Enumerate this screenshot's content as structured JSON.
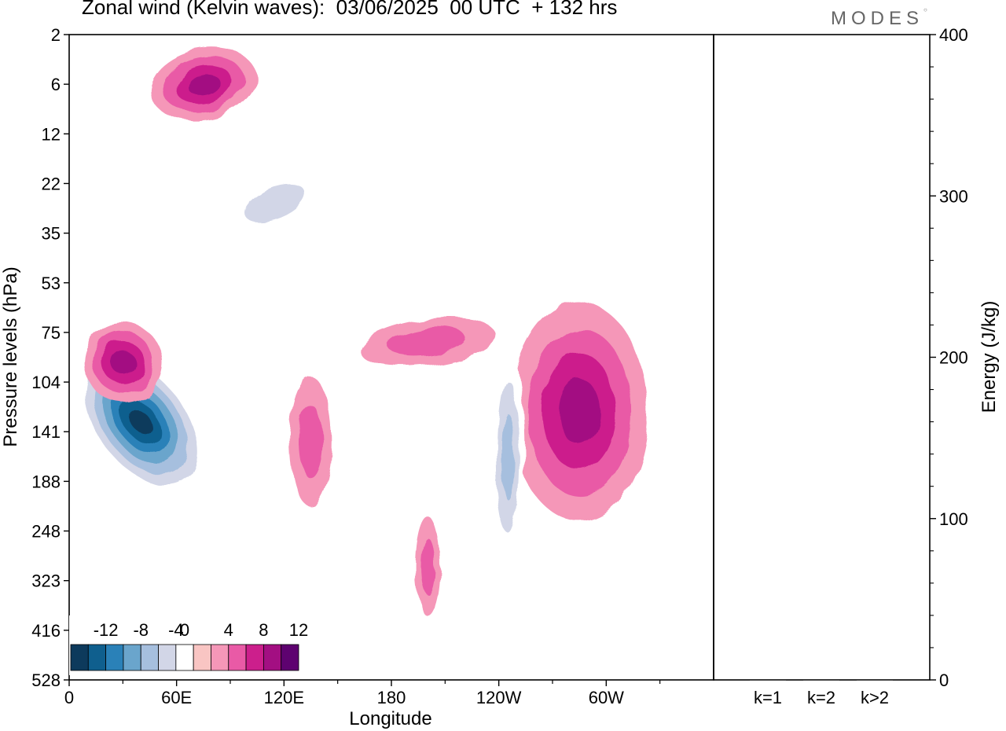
{
  "header": {
    "title": "Zonal wind (Kelvin waves):  03/06/2025  00 UTC  + 132 hrs",
    "logo_text": "MODES"
  },
  "chart_data": [
    {
      "type": "heatmap",
      "title": "Zonal wind (Kelvin waves):  03/06/2025  00 UTC  + 132 hrs",
      "xlabel": "Longitude",
      "ylabel": "Pressure levels (hPa)",
      "x_tick_labels": [
        "0",
        "60E",
        "120E",
        "180",
        "120W",
        "60W"
      ],
      "x_ticks_deg": [
        0,
        60,
        120,
        180,
        240,
        300
      ],
      "xlim_deg": [
        0,
        360
      ],
      "y_tick_labels": [
        "2",
        "6",
        "12",
        "22",
        "35",
        "53",
        "75",
        "104",
        "141",
        "188",
        "248",
        "323",
        "416",
        "528"
      ],
      "y_scale": "pressure levels, evenly spaced",
      "colorbar": {
        "tick_labels": [
          "-12",
          "-8",
          "-4",
          "0",
          "4",
          "8",
          "12"
        ],
        "levels": [
          -14,
          -12,
          -10,
          -8,
          -6,
          -4,
          -2,
          2,
          4,
          6,
          8,
          10,
          12,
          14
        ],
        "colors": [
          "#0d3a5c",
          "#0f5f8e",
          "#2a81b8",
          "#6aa5cc",
          "#a6bfde",
          "#d2d6e7",
          "#ffffff",
          "#f9c5c3",
          "#f597b8",
          "#e95aa6",
          "#cc1f8c",
          "#a30f82",
          "#5e0270"
        ],
        "placement": "bottom-left"
      },
      "features": [
        {
          "sign": "negative",
          "peak": -14,
          "lon_deg": 40,
          "level": "104-141 hPa"
        },
        {
          "sign": "positive",
          "peak": 9,
          "lon_deg": 30,
          "level": "75-104 hPa"
        },
        {
          "sign": "positive",
          "peak": 9,
          "lon_deg": 285,
          "level": "104-141 hPa"
        },
        {
          "sign": "positive",
          "peak": 9,
          "lon_deg": 75,
          "level": "6 hPa"
        },
        {
          "sign": "negative",
          "peak": -6,
          "lon_deg": 245,
          "level": "141-188 hPa"
        },
        {
          "sign": "positive",
          "peak": 4,
          "lon_deg": 135,
          "level": "104-188 hPa"
        },
        {
          "sign": "positive",
          "peak": 4,
          "lon_deg": 200,
          "level": "75 hPa"
        },
        {
          "sign": "positive",
          "peak": 4,
          "lon_deg": 200,
          "level": "248-323 hPa"
        },
        {
          "sign": "negative",
          "peak": -4,
          "lon_deg": 115,
          "level": "22-35 hPa"
        }
      ]
    },
    {
      "type": "bar",
      "ylabel": "Energy (J/kg)",
      "ylim": [
        0,
        400
      ],
      "y_tick_labels": [
        "0",
        "100",
        "200",
        "300",
        "400"
      ],
      "categories": [
        "k=1",
        "k=2",
        "k>2"
      ],
      "values": [
        0.5,
        0.5,
        0.5
      ]
    }
  ]
}
